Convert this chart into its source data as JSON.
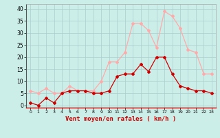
{
  "x": [
    0,
    1,
    2,
    3,
    4,
    5,
    6,
    7,
    8,
    9,
    10,
    11,
    12,
    13,
    14,
    15,
    16,
    17,
    18,
    19,
    20,
    21,
    22,
    23
  ],
  "y_mean": [
    1,
    0,
    3,
    1,
    5,
    6,
    6,
    6,
    5,
    5,
    6,
    12,
    13,
    13,
    17,
    14,
    20,
    20,
    13,
    8,
    7,
    6,
    6,
    5
  ],
  "y_gust": [
    6,
    5,
    7,
    5,
    5,
    8,
    6,
    6,
    6,
    10,
    18,
    18,
    22,
    34,
    34,
    31,
    24,
    39,
    37,
    32,
    23,
    22,
    13,
    13
  ],
  "line_color_mean": "#cc0000",
  "line_color_gust": "#ffaaaa",
  "bg_color": "#cceee8",
  "grid_color": "#aacccc",
  "xlabel": "Vent moyen/en rafales ( km/h )",
  "xlabel_color": "#cc0000",
  "ylabel_ticks": [
    0,
    5,
    10,
    15,
    20,
    25,
    30,
    35,
    40
  ],
  "ylim": [
    -1,
    42
  ],
  "xlim": [
    -0.5,
    23.5
  ]
}
